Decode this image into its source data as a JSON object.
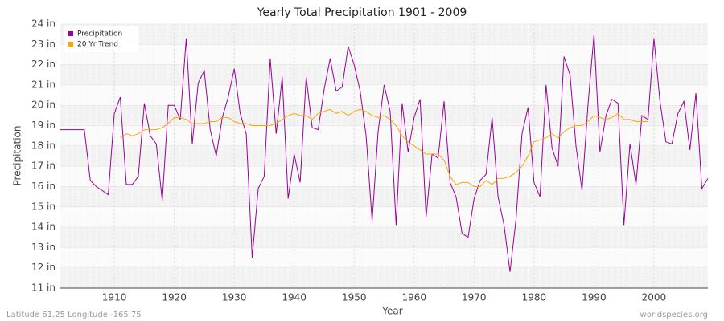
{
  "chart_data": {
    "type": "line",
    "title": "Yearly Total Precipitation 1901 - 2009",
    "x_label": "Year",
    "y_label": "Precipitation",
    "footer_left": "Latitude 61.25 Longitude -165.75",
    "footer_right": "worldspecies.org",
    "legend": "top-left",
    "grid": true,
    "xlim": [
      1901,
      2009
    ],
    "xticks": [
      1910,
      1920,
      1930,
      1940,
      1950,
      1960,
      1970,
      1980,
      1990,
      2000
    ],
    "ylim": [
      11,
      24
    ],
    "yticks": [
      {
        "value": 11,
        "label": "11 in"
      },
      {
        "value": 12,
        "label": "12 in"
      },
      {
        "value": 13,
        "label": "13 in"
      },
      {
        "value": 14,
        "label": "14 in"
      },
      {
        "value": 15,
        "label": "15 in"
      },
      {
        "value": 16,
        "label": "16 in"
      },
      {
        "value": 17,
        "label": "17 in"
      },
      {
        "value": 18,
        "label": "18 in"
      },
      {
        "value": 19,
        "label": "19 in"
      },
      {
        "value": 20,
        "label": "20 in"
      },
      {
        "value": 21,
        "label": "21 in"
      },
      {
        "value": 22,
        "label": "22 in"
      },
      {
        "value": 23,
        "label": "23 in"
      },
      {
        "value": 24,
        "label": "24 in"
      }
    ],
    "x": [
      1901,
      1902,
      1903,
      1904,
      1905,
      1906,
      1907,
      1908,
      1909,
      1910,
      1911,
      1912,
      1913,
      1914,
      1915,
      1916,
      1917,
      1918,
      1919,
      1920,
      1921,
      1922,
      1923,
      1924,
      1925,
      1926,
      1927,
      1928,
      1929,
      1930,
      1931,
      1932,
      1933,
      1934,
      1935,
      1936,
      1937,
      1938,
      1939,
      1940,
      1941,
      1942,
      1943,
      1944,
      1945,
      1946,
      1947,
      1948,
      1949,
      1950,
      1951,
      1952,
      1953,
      1954,
      1955,
      1956,
      1957,
      1958,
      1959,
      1960,
      1961,
      1962,
      1963,
      1964,
      1965,
      1966,
      1967,
      1968,
      1969,
      1970,
      1971,
      1972,
      1973,
      1974,
      1975,
      1976,
      1977,
      1978,
      1979,
      1980,
      1981,
      1982,
      1983,
      1984,
      1985,
      1986,
      1987,
      1988,
      1989,
      1990,
      1991,
      1992,
      1993,
      1994,
      1995,
      1996,
      1997,
      1998,
      1999,
      2000,
      2001,
      2002,
      2003,
      2004,
      2005,
      2006,
      2007,
      2008,
      2009
    ],
    "series": [
      {
        "name": "Precipitation",
        "color": "#990099",
        "values": [
          18.8,
          18.8,
          18.8,
          18.8,
          18.8,
          16.3,
          16.0,
          15.8,
          15.6,
          19.6,
          20.4,
          16.1,
          16.1,
          16.5,
          20.1,
          18.5,
          18.1,
          15.3,
          20.0,
          20.0,
          19.3,
          23.3,
          18.1,
          21.1,
          21.7,
          18.8,
          17.5,
          19.4,
          20.4,
          21.8,
          19.6,
          18.6,
          12.5,
          15.9,
          16.5,
          22.3,
          18.6,
          21.4,
          15.4,
          17.6,
          16.2,
          21.4,
          18.9,
          18.8,
          20.8,
          22.3,
          20.7,
          20.9,
          22.9,
          22.0,
          20.7,
          18.5,
          14.3,
          18.7,
          21.0,
          19.7,
          14.1,
          20.1,
          17.7,
          19.4,
          20.3,
          14.5,
          17.6,
          17.4,
          20.2,
          16.2,
          15.5,
          13.7,
          13.5,
          15.4,
          16.3,
          16.6,
          19.4,
          15.5,
          14.1,
          11.8,
          14.4,
          18.6,
          19.9,
          16.2,
          15.5,
          21.0,
          17.9,
          17.0,
          22.4,
          21.5,
          18.0,
          15.8,
          20.0,
          23.5,
          17.7,
          19.5,
          20.3,
          20.1,
          14.1,
          18.1,
          16.1,
          19.5,
          19.3,
          23.3,
          20.2,
          18.2,
          18.1,
          19.6,
          20.2,
          17.8,
          20.6,
          15.9,
          16.4
        ]
      },
      {
        "name": "20 Yr Trend",
        "color": "#ffa500",
        "values": [
          null,
          null,
          null,
          null,
          null,
          null,
          null,
          null,
          null,
          null,
          18.4,
          18.6,
          18.5,
          18.6,
          18.8,
          18.8,
          18.8,
          18.9,
          19.1,
          19.4,
          19.4,
          19.3,
          19.1,
          19.1,
          19.1,
          19.2,
          19.2,
          19.4,
          19.4,
          19.2,
          19.1,
          19.1,
          19.0,
          19.0,
          19.0,
          19.0,
          19.1,
          19.3,
          19.5,
          19.6,
          19.5,
          19.5,
          19.3,
          19.6,
          19.7,
          19.8,
          19.6,
          19.7,
          19.5,
          19.7,
          19.8,
          19.7,
          19.5,
          19.4,
          19.5,
          19.3,
          19.0,
          18.5,
          18.2,
          18.0,
          17.8,
          17.6,
          17.6,
          17.6,
          17.3,
          16.5,
          16.1,
          16.2,
          16.2,
          16.0,
          16.0,
          16.3,
          16.1,
          16.4,
          16.4,
          16.5,
          16.7,
          17.0,
          17.5,
          18.2,
          18.3,
          18.4,
          18.6,
          18.4,
          18.7,
          18.9,
          19.0,
          19.0,
          19.2,
          19.5,
          19.4,
          19.3,
          19.4,
          19.6,
          19.3,
          19.3,
          19.2,
          19.2,
          19.2,
          null,
          null,
          null,
          null,
          null,
          null,
          null,
          null,
          null,
          null
        ]
      }
    ]
  }
}
